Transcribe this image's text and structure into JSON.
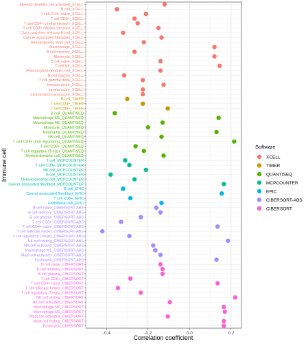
{
  "chart_data": {
    "type": "scatter",
    "xlabel": "Correlation coefficient",
    "ylabel": "Immune cell",
    "xlim": [
      -0.5,
      0.25
    ],
    "xticks": [
      "-0.4",
      "-0.2",
      "0.0",
      "0.2"
    ],
    "xtick_values": [
      -0.4,
      -0.2,
      0.0,
      0.2
    ],
    "grid": true,
    "legend": {
      "title": "Software",
      "position": "right",
      "entries": [
        "XCELL",
        "TIMER",
        "QUANTISEQ",
        "MCPCOUNTER",
        "EPIC",
        "CIBERSORT-ABS",
        "CIBERSORT"
      ]
    },
    "colors": {
      "XCELL": "#F8766D",
      "TIMER": "#C49A00",
      "QUANTISEQ": "#53B400",
      "MCPCOUNTER": "#00C094",
      "EPIC": "#00B6EB",
      "CIBERSORT-ABS": "#A58AFF",
      "CIBERSORT": "#FB61D7"
    },
    "points": [
      {
        "label": "Myeloid dendritic cell activated_XCELL",
        "software": "XCELL",
        "x": -0.12
      },
      {
        "label": "B cell_XCELL",
        "software": "XCELL",
        "x": -0.35
      },
      {
        "label": "T cell CD4+ naive_XCELL",
        "software": "XCELL",
        "x": -0.21
      },
      {
        "label": "T cell CD8+_XCELL",
        "software": "XCELL",
        "x": -0.265
      },
      {
        "label": "T cell CD4+ central memory_XCELL",
        "software": "XCELL",
        "x": -0.25
      },
      {
        "label": "T cell CD8+ effector memory_XCELL",
        "software": "XCELL",
        "x": -0.15
      },
      {
        "label": "Class-switched memory B cell_XCELL",
        "software": "XCELL",
        "x": -0.32
      },
      {
        "label": "Cancer associated fibroblast_XCELL",
        "software": "XCELL",
        "x": -0.135
      },
      {
        "label": "Hematopoietic stem cell_XCELL",
        "software": "XCELL",
        "x": -0.22
      },
      {
        "label": "Macrophage_XCELL",
        "software": "XCELL",
        "x": 0.12
      },
      {
        "label": "B cell memory_XCELL",
        "software": "XCELL",
        "x": -0.265
      },
      {
        "label": "Monocyte_XCELL",
        "software": "XCELL",
        "x": 0.12
      },
      {
        "label": "B cell naive_XCELL",
        "software": "XCELL",
        "x": -0.14
      },
      {
        "label": "T cell NK_XCELL",
        "software": "XCELL",
        "x": 0.145
      },
      {
        "label": "Plasmacytoid dendritic cell_XCELL",
        "software": "XCELL",
        "x": -0.14
      },
      {
        "label": "B cell plasma_XCELL",
        "software": "XCELL",
        "x": -0.315
      },
      {
        "label": "T cell gamma delta_XCELL",
        "software": "XCELL",
        "x": -0.225
      },
      {
        "label": "immune score_XCELL",
        "software": "XCELL",
        "x": -0.125
      },
      {
        "label": "stroma score_XCELL",
        "software": "XCELL",
        "x": -0.225
      },
      {
        "label": "microenvironment score_XCELL",
        "software": "XCELL",
        "x": -0.225
      },
      {
        "label": "B cell_TIMER",
        "software": "TIMER",
        "x": -0.3
      },
      {
        "label": "T cell CD4+_TIMER",
        "software": "TIMER",
        "x": -0.225
      },
      {
        "label": "T cell CD8+_TIMER",
        "software": "TIMER",
        "x": -0.105
      },
      {
        "label": "B cell_QUANTISEQ",
        "software": "QUANTISEQ",
        "x": -0.36
      },
      {
        "label": "Macrophage M1_QUANTISEQ",
        "software": "QUANTISEQ",
        "x": 0.14
      },
      {
        "label": "Macrophage M2_QUANTISEQ",
        "software": "QUANTISEQ",
        "x": -0.13
      },
      {
        "label": "Monocyte_QUANTISEQ",
        "software": "QUANTISEQ",
        "x": -0.2
      },
      {
        "label": "Neutrophil_QUANTISEQ",
        "software": "QUANTISEQ",
        "x": 0.13
      },
      {
        "label": "NK cell_QUANTISEQ",
        "software": "QUANTISEQ",
        "x": -0.135
      },
      {
        "label": "T cell CD4+ (non-regulatory)_QUANTISEQ",
        "software": "QUANTISEQ",
        "x": 0.215
      },
      {
        "label": "T cell CD8+_QUANTISEQ",
        "software": "QUANTISEQ",
        "x": -0.26
      },
      {
        "label": "T cell regulatory (Tregs)_QUANTISEQ",
        "software": "QUANTISEQ",
        "x": -0.22
      },
      {
        "label": "Myeloid dendritic cell_QUANTISEQ",
        "software": "QUANTISEQ",
        "x": -0.125
      },
      {
        "label": "T cell_MCPCOUNTER",
        "software": "MCPCOUNTER",
        "x": -0.31
      },
      {
        "label": "T cell CD8+_MCPCOUNTER",
        "software": "MCPCOUNTER",
        "x": -0.29
      },
      {
        "label": "NK cell_MCPCOUNTER",
        "software": "MCPCOUNTER",
        "x": -0.21
      },
      {
        "label": "B cell_MCPCOUNTER",
        "software": "MCPCOUNTER",
        "x": -0.38
      },
      {
        "label": "Myeloid dendritic cell_MCPCOUNTER",
        "software": "MCPCOUNTER",
        "x": -0.265
      },
      {
        "label": "Cancer associated fibroblast_MCPCOUNTER",
        "software": "MCPCOUNTER",
        "x": 0.165
      },
      {
        "label": "B cell_EPIC",
        "software": "EPIC",
        "x": -0.32
      },
      {
        "label": "Cancer associated fibroblast_EPIC",
        "software": "EPIC",
        "x": 0.155
      },
      {
        "label": "T cell CD8+_EPIC",
        "software": "EPIC",
        "x": -0.285
      },
      {
        "label": "Endothelial cell_EPIC",
        "software": "EPIC",
        "x": -0.135
      },
      {
        "label": "B cell naive_CIBERSORT-ABS",
        "software": "CIBERSORT-ABS",
        "x": -0.16
      },
      {
        "label": "B cell memory_CIBERSORT-ABS",
        "software": "CIBERSORT-ABS",
        "x": -0.14
      },
      {
        "label": "B cell plasma_CIBERSORT-ABS",
        "software": "CIBERSORT-ABS",
        "x": -0.235
      },
      {
        "label": "T cell CD8+_CIBERSORT-ABS",
        "software": "CIBERSORT-ABS",
        "x": -0.33
      },
      {
        "label": "T cell CD4+ naive_CIBERSORT-ABS",
        "software": "CIBERSORT-ABS",
        "x": 0.135
      },
      {
        "label": "T cell follicular helper_CIBERSORT-ABS",
        "software": "CIBERSORT-ABS",
        "x": -0.42
      },
      {
        "label": "T cell regulatory (Tregs)_CIBERSORT-ABS",
        "software": "CIBERSORT-ABS",
        "x": -0.29
      },
      {
        "label": "NK cell resting_CIBERSORT-ABS",
        "software": "CIBERSORT-ABS",
        "x": 0.185
      },
      {
        "label": "NK cell activated_CIBERSORT-ABS",
        "software": "CIBERSORT-ABS",
        "x": -0.175
      },
      {
        "label": "Macrophage M1_CIBERSORT-ABS",
        "software": "CIBERSORT-ABS",
        "x": -0.165
      },
      {
        "label": "Mast cell activated_CIBERSORT-ABS",
        "software": "CIBERSORT-ABS",
        "x": -0.14
      },
      {
        "label": "Eosinophil_CIBERSORT-ABS",
        "software": "CIBERSORT-ABS",
        "x": 0.13
      },
      {
        "label": "B cell naive_CIBERSORT",
        "software": "CIBERSORT",
        "x": -0.14
      },
      {
        "label": "B cell memory_CIBERSORT",
        "software": "CIBERSORT",
        "x": -0.13
      },
      {
        "label": "B cell plasma_CIBERSORT",
        "software": "CIBERSORT",
        "x": -0.13
      },
      {
        "label": "T cell CD8+_CIBERSORT",
        "software": "CIBERSORT",
        "x": -0.285
      },
      {
        "label": "T cell CD4+ naive_CIBERSORT",
        "software": "CIBERSORT",
        "x": 0.135
      },
      {
        "label": "T cell follicular helper_CIBERSORT",
        "software": "CIBERSORT",
        "x": -0.345
      },
      {
        "label": "T cell regulatory (Tregs)_CIBERSORT",
        "software": "CIBERSORT",
        "x": -0.235
      },
      {
        "label": "NK cell resting_CIBERSORT",
        "software": "CIBERSORT",
        "x": 0.22
      },
      {
        "label": "NK cell activated_CIBERSORT",
        "software": "CIBERSORT",
        "x": -0.095
      },
      {
        "label": "Macrophage M0_CIBERSORT",
        "software": "CIBERSORT",
        "x": 0.165
      },
      {
        "label": "Macrophage M2_CIBERSORT",
        "software": "CIBERSORT",
        "x": 0.17
      },
      {
        "label": "Mast cell activated_CIBERSORT",
        "software": "CIBERSORT",
        "x": -0.105
      },
      {
        "label": "Mast cell resting_CIBERSORT",
        "software": "CIBERSORT",
        "x": 0.165
      },
      {
        "label": "Eosinophil_CIBERSORT",
        "software": "CIBERSORT",
        "x": 0.165
      }
    ]
  }
}
